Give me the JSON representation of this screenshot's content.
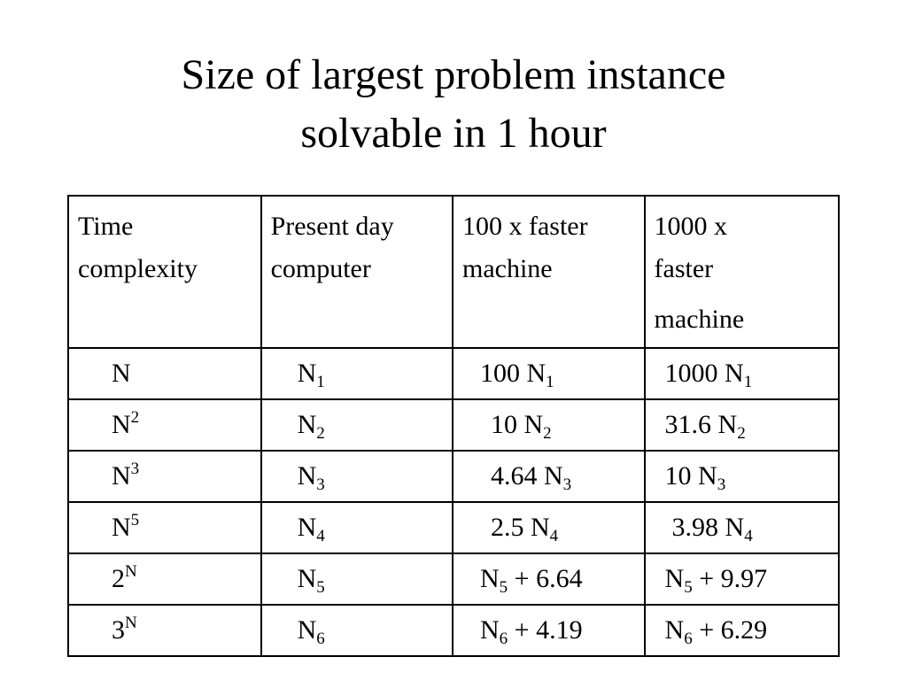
{
  "title": {
    "line1": "Size of largest problem instance",
    "line2": "solvable in 1 hour"
  },
  "table": {
    "headers": [
      [
        "Time",
        "complexity"
      ],
      [
        "Present day",
        "computer"
      ],
      [
        "100 x faster",
        "machine"
      ],
      [
        "1000 x",
        "faster",
        "machine"
      ]
    ],
    "rows": [
      {
        "complexity": {
          "base": "N",
          "sup": ""
        },
        "present": {
          "base": "N",
          "sub": "1",
          "suffix": ""
        },
        "x100": {
          "prefix": "100 N",
          "sub": "1",
          "suffix": ""
        },
        "x1000": {
          "prefix": "1000 N",
          "sub": "1",
          "suffix": ""
        }
      },
      {
        "complexity": {
          "base": "N",
          "sup": "2"
        },
        "present": {
          "base": "N",
          "sub": "2",
          "suffix": ""
        },
        "x100": {
          "prefix": "10 N",
          "sub": "2",
          "suffix": ""
        },
        "x1000": {
          "prefix": "31.6 N",
          "sub": "2",
          "suffix": ""
        }
      },
      {
        "complexity": {
          "base": "N",
          "sup": "3"
        },
        "present": {
          "base": "N",
          "sub": "3",
          "suffix": ""
        },
        "x100": {
          "prefix": "4.64 N",
          "sub": "3",
          "suffix": ""
        },
        "x1000": {
          "prefix": "10 N",
          "sub": "3",
          "suffix": ""
        }
      },
      {
        "complexity": {
          "base": "N",
          "sup": "5"
        },
        "present": {
          "base": "N",
          "sub": "4",
          "suffix": ""
        },
        "x100": {
          "prefix": "2.5 N",
          "sub": "4",
          "suffix": ""
        },
        "x1000": {
          "prefix": "3.98 N",
          "sub": "4",
          "suffix": ""
        }
      },
      {
        "complexity": {
          "base": "2",
          "sup": "N"
        },
        "present": {
          "base": "N",
          "sub": "5",
          "suffix": ""
        },
        "x100": {
          "prefix": "N",
          "sub": "5",
          "suffix": " + 6.64"
        },
        "x1000": {
          "prefix": "N",
          "sub": "5",
          "suffix": " + 9.97"
        }
      },
      {
        "complexity": {
          "base": "3",
          "sup": "N"
        },
        "present": {
          "base": "N",
          "sub": "6",
          "suffix": ""
        },
        "x100": {
          "prefix": "N",
          "sub": "6",
          "suffix": " + 4.19"
        },
        "x1000": {
          "prefix": "N",
          "sub": "6",
          "suffix": " + 6.29"
        }
      }
    ]
  }
}
